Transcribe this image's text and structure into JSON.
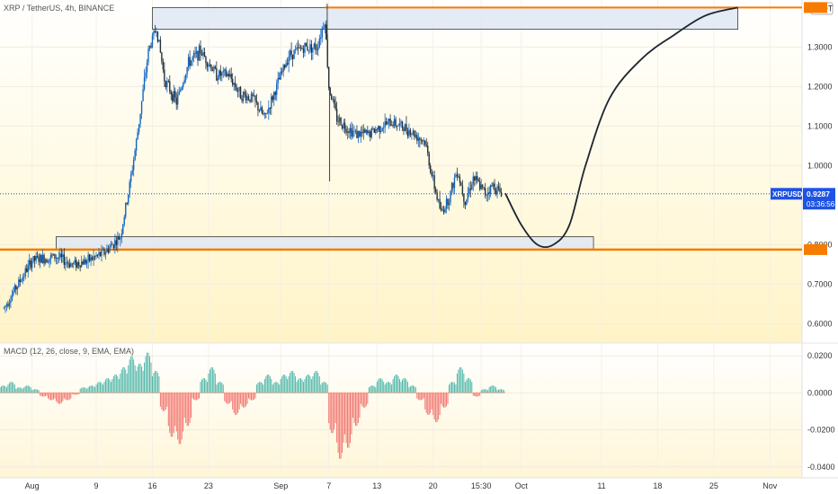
{
  "header": {
    "symbol_title": "XRP / TetherUS, 4h, BINANCE",
    "currency_badge": "USDT"
  },
  "price_badge": {
    "symbol": "XRPUSDT",
    "price": "0.9287",
    "countdown": "03:36:56"
  },
  "chart_data": {
    "type": "candlestick",
    "price_axis": {
      "ticks": [
        "1.3000",
        "1.2000",
        "1.1000",
        "1.0000",
        "0.8000",
        "0.7000",
        "0.6000"
      ],
      "tick_values": [
        1.3,
        1.2,
        1.1,
        1.0,
        0.8,
        0.7,
        0.6
      ],
      "ylim": [
        0.56,
        1.41
      ]
    },
    "time_axis": {
      "ticks": [
        "Aug",
        "9",
        "16",
        "23",
        "Sep",
        "7",
        "13",
        "20",
        "15:30",
        "Oct",
        "11",
        "18",
        "25",
        "Nov"
      ],
      "tick_days": [
        1,
        9,
        16,
        23,
        32,
        38,
        44,
        51,
        57,
        62,
        72,
        79,
        86,
        93
      ],
      "xlim_days": [
        -3,
        97
      ]
    },
    "price_path": [
      [
        -2.5,
        0.64
      ],
      [
        1,
        0.76
      ],
      [
        4,
        0.77
      ],
      [
        6,
        0.75
      ],
      [
        8,
        0.76
      ],
      [
        10,
        0.78
      ],
      [
        12,
        0.82
      ],
      [
        13,
        0.93
      ],
      [
        14,
        1.06
      ],
      [
        15.5,
        1.29
      ],
      [
        16.5,
        1.35
      ],
      [
        17.5,
        1.22
      ],
      [
        19,
        1.16
      ],
      [
        20.5,
        1.26
      ],
      [
        22,
        1.29
      ],
      [
        24,
        1.23
      ],
      [
        25.5,
        1.23
      ],
      [
        27,
        1.18
      ],
      [
        28.5,
        1.17
      ],
      [
        30,
        1.12
      ],
      [
        31.5,
        1.2
      ],
      [
        33,
        1.28
      ],
      [
        35,
        1.3
      ],
      [
        36.5,
        1.3
      ],
      [
        37.5,
        1.37
      ],
      [
        38,
        1.2
      ],
      [
        39,
        1.12
      ],
      [
        40,
        1.1
      ],
      [
        41.5,
        1.08
      ],
      [
        43,
        1.08
      ],
      [
        44.5,
        1.1
      ],
      [
        46,
        1.11
      ],
      [
        48,
        1.09
      ],
      [
        50,
        1.06
      ],
      [
        51,
        0.96
      ],
      [
        52,
        0.88
      ],
      [
        53,
        0.92
      ],
      [
        54,
        0.99
      ],
      [
        55,
        0.91
      ],
      [
        56,
        0.97
      ],
      [
        57.5,
        0.93
      ],
      [
        58.5,
        0.95
      ],
      [
        59.5,
        0.93
      ]
    ],
    "resistance_level": {
      "price": 1.4
    },
    "support_level": {
      "price": 0.7875
    },
    "supply_zone": {
      "from_day": 16,
      "to_day": 89,
      "low": 1.345,
      "high": 1.4
    },
    "demand_zone": {
      "from_day": 4,
      "to_day": 71,
      "low": 0.7875,
      "high": 0.82
    },
    "projection_path": [
      [
        60,
        0.93
      ],
      [
        62,
        0.85
      ],
      [
        64,
        0.8
      ],
      [
        66,
        0.8
      ],
      [
        68,
        0.85
      ],
      [
        70,
        1.0
      ],
      [
        73,
        1.17
      ],
      [
        77,
        1.27
      ],
      [
        81,
        1.33
      ],
      [
        85,
        1.38
      ],
      [
        89,
        1.4
      ]
    ],
    "macd": {
      "label": "MACD (12, 26, close, 9, EMA, EMA)",
      "ticks": [
        "0.0200",
        "0.0000",
        "-0.0200",
        "-0.0400"
      ],
      "tick_values": [
        0.02,
        0.0,
        -0.02,
        -0.04
      ],
      "ylim": [
        -0.044,
        0.024
      ],
      "histogram": [
        [
          -2.5,
          0.004
        ],
        [
          -1.5,
          0.006
        ],
        [
          -0.5,
          0.003
        ],
        [
          0.5,
          0.004
        ],
        [
          1.5,
          0.002
        ],
        [
          2.5,
          -0.002
        ],
        [
          3.5,
          -0.004
        ],
        [
          4.5,
          -0.006
        ],
        [
          5.5,
          -0.004
        ],
        [
          6.5,
          -0.001
        ],
        [
          7.5,
          0.003
        ],
        [
          8.5,
          0.004
        ],
        [
          9.5,
          0.006
        ],
        [
          10.5,
          0.008
        ],
        [
          11.5,
          0.01
        ],
        [
          12.5,
          0.014
        ],
        [
          13.5,
          0.02
        ],
        [
          14.5,
          0.016
        ],
        [
          15.5,
          0.022
        ],
        [
          16.5,
          0.012
        ],
        [
          17.5,
          -0.01
        ],
        [
          18.5,
          -0.024
        ],
        [
          19.5,
          -0.028
        ],
        [
          20.5,
          -0.018
        ],
        [
          21.5,
          -0.004
        ],
        [
          22.5,
          0.008
        ],
        [
          23.5,
          0.014
        ],
        [
          24.5,
          0.006
        ],
        [
          25.5,
          -0.006
        ],
        [
          26.5,
          -0.012
        ],
        [
          27.5,
          -0.008
        ],
        [
          28.5,
          -0.004
        ],
        [
          29.5,
          0.006
        ],
        [
          30.5,
          0.01
        ],
        [
          31.5,
          0.006
        ],
        [
          32.5,
          0.01
        ],
        [
          33.5,
          0.012
        ],
        [
          34.5,
          0.008
        ],
        [
          35.5,
          0.01
        ],
        [
          36.5,
          0.012
        ],
        [
          37.5,
          0.006
        ],
        [
          38.5,
          -0.022
        ],
        [
          39.5,
          -0.036
        ],
        [
          40.5,
          -0.03
        ],
        [
          41.5,
          -0.018
        ],
        [
          42.5,
          -0.008
        ],
        [
          43.5,
          0.004
        ],
        [
          44.5,
          0.008
        ],
        [
          45.5,
          0.006
        ],
        [
          46.5,
          0.01
        ],
        [
          47.5,
          0.008
        ],
        [
          48.5,
          0.004
        ],
        [
          49.5,
          -0.004
        ],
        [
          50.5,
          -0.012
        ],
        [
          51.5,
          -0.016
        ],
        [
          52.5,
          -0.008
        ],
        [
          53.5,
          0.006
        ],
        [
          54.5,
          0.014
        ],
        [
          55.5,
          0.008
        ],
        [
          56.5,
          -0.002
        ],
        [
          57.5,
          0.002
        ],
        [
          58.5,
          0.004
        ],
        [
          59.5,
          0.002
        ]
      ]
    },
    "colors": {
      "up": "#26a69a",
      "down": "#ef5350",
      "level_line": "#f57c00",
      "zone_fill": "#dfe8f2",
      "price_badge": "#1e53e5",
      "projection": "#1d2530"
    }
  }
}
